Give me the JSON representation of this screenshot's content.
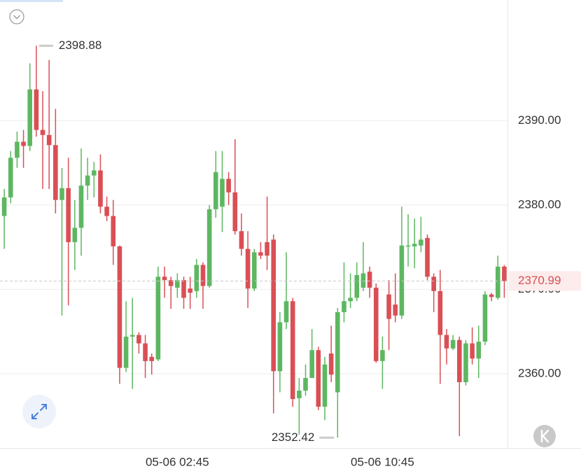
{
  "chart_data": {
    "type": "candlestick",
    "categories": [
      null,
      null,
      null,
      null,
      null,
      null,
      null,
      null,
      null,
      null,
      null,
      null,
      null,
      null,
      null,
      null,
      null,
      null,
      null,
      null,
      null,
      null,
      null,
      null,
      null,
      null,
      null,
      "05-06 02:45",
      null,
      null,
      null,
      null,
      null,
      null,
      null,
      null,
      null,
      null,
      null,
      null,
      null,
      null,
      null,
      null,
      null,
      null,
      null,
      null,
      null,
      null,
      null,
      null,
      null,
      null,
      null,
      null,
      null,
      null,
      null,
      "05-06 10:45",
      null,
      null,
      null,
      null,
      null,
      null,
      null,
      null,
      null,
      null,
      null,
      null,
      null,
      null,
      null,
      null,
      null,
      null,
      null
    ],
    "open": [
      2378.7,
      2380.9,
      2385.6,
      2387.5,
      2387.0,
      2393.7,
      2388.9,
      2388.3,
      2387.1,
      2380.6,
      2382.0,
      2375.6,
      2377.3,
      2382.3,
      2383.5,
      2384.1,
      2379.8,
      2378.7,
      2375.1,
      2360.7,
      2364.4,
      2364.6,
      2363.6,
      2362.0,
      2361.7,
      2371.5,
      2371.1,
      2370.2,
      2371.1,
      2370.1,
      2369.8,
      2372.9,
      2370.4,
      2379.5,
      2379.8,
      2383.1,
      2381.5,
      2376.9,
      2374.8,
      2370.1,
      2374.4,
      2375.6,
      2375.9,
      2360.3,
      2366.1,
      2368.6,
      2357.1,
      2358.0,
      2359.5,
      2362.8,
      2356.1,
      2362.4,
      2357.8,
      2367.3,
      2368.6,
      2369.0,
      2370.2,
      2372.1,
      2370.2,
      2361.5,
      2369.4,
      2368.2,
      2366.9,
      2375.1,
      2375.1,
      2375.2,
      2376.1,
      2371.5,
      2369.8,
      2364.6,
      2363.0,
      2364.0,
      2359.0,
      2363.6,
      2361.8,
      2363.8,
      2369.4,
      2369.0,
      2372.7
    ],
    "high": [
      2381.9,
      2386.4,
      2388.7,
      2388.9,
      2396.8,
      2398.88,
      2393.5,
      2397.2,
      2391.4,
      2384.4,
      2385.6,
      2380.6,
      2386.7,
      2385.6,
      2385.1,
      2386.0,
      2381.0,
      2380.6,
      2375.2,
      2368.6,
      2369.0,
      2364.9,
      2364.6,
      2362.4,
      2372.7,
      2372.7,
      2371.5,
      2371.9,
      2371.5,
      2371.5,
      2373.6,
      2373.2,
      2380.0,
      2386.4,
      2386.4,
      2383.9,
      2387.8,
      2379.0,
      2376.9,
      2374.8,
      2375.6,
      2381.0,
      2376.5,
      2367.3,
      2374.4,
      2369.0,
      2359.5,
      2361.1,
      2365.3,
      2363.2,
      2362.0,
      2365.7,
      2367.8,
      2373.2,
      2371.9,
      2373.2,
      2375.6,
      2372.7,
      2370.7,
      2364.4,
      2371.1,
      2371.9,
      2379.8,
      2378.9,
      2378.4,
      2378.6,
      2376.5,
      2371.9,
      2372.3,
      2365.3,
      2364.6,
      2364.4,
      2364.0,
      2365.5,
      2365.7,
      2369.8,
      2369.6,
      2374.0,
      2372.9
    ],
    "low": [
      2374.8,
      2380.2,
      2384.4,
      2384.4,
      2386.4,
      2388.1,
      2381.9,
      2381.9,
      2379.0,
      2366.9,
      2368.1,
      2372.3,
      2374.0,
      2380.6,
      2380.9,
      2379.0,
      2378.1,
      2372.9,
      2358.8,
      2360.2,
      2358.2,
      2362.4,
      2359.5,
      2359.9,
      2361.5,
      2369.0,
      2367.7,
      2369.0,
      2367.7,
      2367.7,
      2369.0,
      2367.7,
      2370.2,
      2378.5,
      2376.8,
      2380.0,
      2376.5,
      2374.0,
      2367.8,
      2369.8,
      2373.6,
      2372.3,
      2355.3,
      2357.8,
      2365.3,
      2356.1,
      2352.8,
      2357.4,
      2359.5,
      2355.7,
      2354.5,
      2359.0,
      2352.42,
      2366.1,
      2367.8,
      2368.6,
      2369.8,
      2369.0,
      2361.3,
      2358.2,
      2362.8,
      2366.1,
      2366.5,
      2372.7,
      2372.5,
      2374.4,
      2371.1,
      2367.3,
      2358.8,
      2361.1,
      2362.8,
      2352.6,
      2358.6,
      2361.1,
      2359.5,
      2363.4,
      2368.6,
      2368.8,
      2369.0
    ],
    "close": [
      2380.9,
      2385.6,
      2387.5,
      2387.0,
      2393.7,
      2388.9,
      2388.3,
      2387.1,
      2380.6,
      2382.0,
      2375.6,
      2377.3,
      2382.3,
      2383.5,
      2384.1,
      2379.8,
      2378.7,
      2375.1,
      2360.7,
      2364.4,
      2364.6,
      2363.6,
      2361.5,
      2361.5,
      2371.5,
      2371.1,
      2370.4,
      2371.1,
      2369.0,
      2369.6,
      2372.9,
      2370.4,
      2379.5,
      2383.9,
      2383.1,
      2381.5,
      2376.9,
      2374.8,
      2370.1,
      2374.4,
      2374.0,
      2374.0,
      2360.3,
      2366.1,
      2368.6,
      2357.0,
      2358.0,
      2359.5,
      2362.8,
      2356.1,
      2361.1,
      2359.9,
      2367.3,
      2368.6,
      2369.0,
      2371.7,
      2371.9,
      2370.2,
      2361.5,
      2362.8,
      2366.5,
      2366.9,
      2375.2,
      2375.2,
      2375.4,
      2375.9,
      2371.5,
      2369.8,
      2364.6,
      2363.0,
      2364.0,
      2359.0,
      2363.6,
      2361.8,
      2363.8,
      2369.4,
      2369.1,
      2372.7,
      2370.99
    ],
    "up_color": "#5db761",
    "down_color": "#d94f55",
    "ylim": [
      2351.2,
      2404.3
    ],
    "yticks": [
      {
        "value": 2360,
        "label": "2360.00"
      },
      {
        "value": 2370,
        "label": "2370.00"
      },
      {
        "value": 2380,
        "label": "2380.00"
      },
      {
        "value": 2390,
        "label": "2390.00"
      }
    ],
    "grid": true,
    "annotations": {
      "high": 2398.88,
      "low": 2352.42,
      "last": 2370.99
    }
  }
}
